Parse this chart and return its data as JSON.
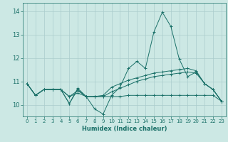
{
  "xlabel": "Humidex (Indice chaleur)",
  "background_color": "#cce8e4",
  "grid_color": "#aacccc",
  "line_color": "#1a7068",
  "xlim": [
    -0.5,
    23.5
  ],
  "ylim": [
    9.5,
    14.35
  ],
  "yticks": [
    10,
    11,
    12,
    13,
    14
  ],
  "xticks": [
    0,
    1,
    2,
    3,
    4,
    5,
    6,
    7,
    8,
    9,
    10,
    11,
    12,
    13,
    14,
    15,
    16,
    17,
    18,
    19,
    20,
    21,
    22,
    23
  ],
  "series": [
    [
      10.9,
      10.4,
      10.65,
      10.65,
      10.65,
      10.05,
      10.7,
      10.35,
      9.82,
      9.6,
      10.4,
      10.75,
      11.55,
      11.85,
      11.55,
      13.1,
      13.95,
      13.35,
      11.95,
      11.2,
      11.4,
      10.9,
      10.65,
      10.15
    ],
    [
      10.9,
      10.4,
      10.65,
      10.65,
      10.65,
      10.05,
      10.65,
      10.35,
      10.35,
      10.4,
      10.75,
      10.9,
      11.05,
      11.15,
      11.25,
      11.35,
      11.4,
      11.45,
      11.5,
      11.55,
      11.45,
      10.9,
      10.65,
      10.15
    ],
    [
      10.9,
      10.4,
      10.65,
      10.65,
      10.65,
      10.35,
      10.5,
      10.35,
      10.35,
      10.35,
      10.35,
      10.35,
      10.4,
      10.4,
      10.4,
      10.4,
      10.4,
      10.4,
      10.4,
      10.4,
      10.4,
      10.4,
      10.4,
      10.15
    ],
    [
      10.9,
      10.4,
      10.65,
      10.65,
      10.65,
      10.35,
      10.6,
      10.35,
      10.35,
      10.35,
      10.55,
      10.7,
      10.85,
      11.0,
      11.1,
      11.2,
      11.25,
      11.3,
      11.35,
      11.4,
      11.35,
      10.9,
      10.65,
      10.15
    ]
  ]
}
